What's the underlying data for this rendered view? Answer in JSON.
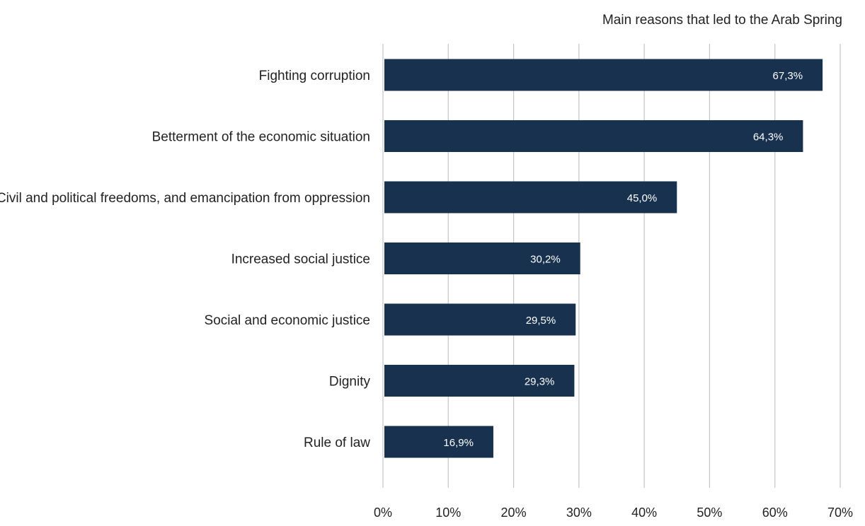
{
  "chart_data": {
    "type": "bar",
    "orientation": "horizontal",
    "title": "Main reasons that led to the Arab Spring",
    "categories": [
      "Fighting corruption",
      "Betterment of the economic situation",
      "Civil and political freedoms, and emancipation from oppression",
      "Increased social justice",
      "Social and economic justice",
      "Dignity",
      "Rule of law"
    ],
    "values": [
      67.3,
      64.3,
      45.0,
      30.2,
      29.5,
      29.3,
      16.9
    ],
    "value_labels": [
      "67,3%",
      "64,3%",
      "45,0%",
      "30,2%",
      "29,5%",
      "29,3%",
      "16,9%"
    ],
    "xlim": [
      0,
      70
    ],
    "ticks": [
      0,
      10,
      20,
      30,
      40,
      50,
      60,
      70
    ],
    "tick_labels": [
      "0%",
      "10%",
      "20%",
      "30%",
      "40%",
      "50%",
      "60%",
      "70%"
    ],
    "xlabel": "",
    "ylabel": "",
    "grid": true,
    "legend": "none",
    "bar_color": "#17314f",
    "label_color": "#ffffff"
  }
}
